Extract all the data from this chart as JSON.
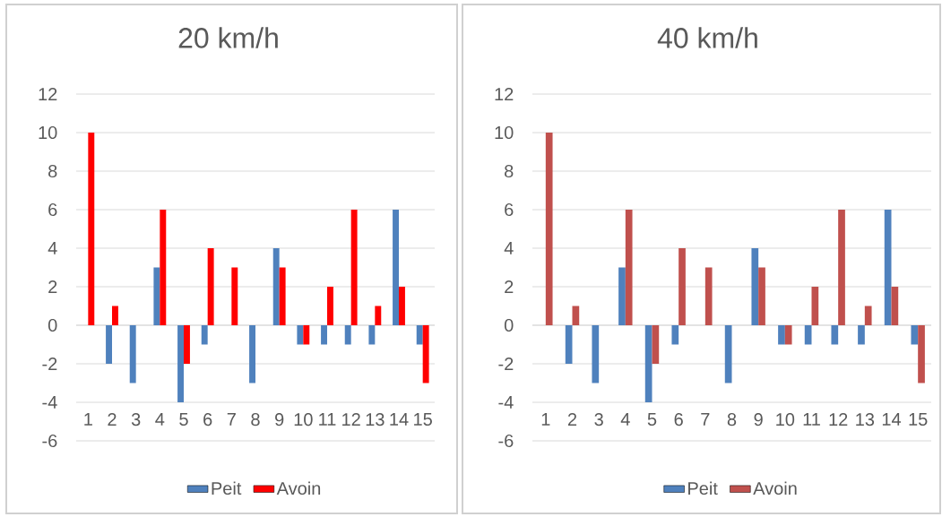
{
  "chart_data": [
    {
      "type": "bar",
      "title": "20 km/h",
      "categories": [
        "1",
        "2",
        "3",
        "4",
        "5",
        "6",
        "7",
        "8",
        "9",
        "10",
        "11",
        "12",
        "13",
        "14",
        "15"
      ],
      "series": [
        {
          "name": "Peit",
          "color": "#4f81bd",
          "values": [
            0,
            -2,
            -3,
            3,
            -4,
            -1,
            0,
            -3,
            4,
            -1,
            -1,
            -1,
            -1,
            6,
            -1
          ]
        },
        {
          "name": "Avoin",
          "color": "#ff0000",
          "values": [
            10,
            1,
            0,
            6,
            -2,
            4,
            3,
            0,
            3,
            -1,
            2,
            6,
            1,
            2,
            -3
          ]
        }
      ],
      "ylim": [
        -6,
        12
      ],
      "yticks": [
        -6,
        -4,
        -2,
        0,
        2,
        4,
        6,
        8,
        10,
        12
      ],
      "grid": "y",
      "legend": "bottom"
    },
    {
      "type": "bar",
      "title": "40 km/h",
      "categories": [
        "1",
        "2",
        "3",
        "4",
        "5",
        "6",
        "7",
        "8",
        "9",
        "10",
        "11",
        "12",
        "13",
        "14",
        "15"
      ],
      "series": [
        {
          "name": "Peit",
          "color": "#4f81bd",
          "values": [
            0,
            -2,
            -3,
            3,
            -4,
            -1,
            0,
            -3,
            4,
            -1,
            -1,
            -1,
            -1,
            6,
            -1
          ]
        },
        {
          "name": "Avoin",
          "color": "#c0504d",
          "values": [
            10,
            1,
            0,
            6,
            -2,
            4,
            3,
            0,
            3,
            -1,
            2,
            6,
            1,
            2,
            -3
          ]
        }
      ],
      "ylim": [
        -6,
        12
      ],
      "yticks": [
        -6,
        -4,
        -2,
        0,
        2,
        4,
        6,
        8,
        10,
        12
      ],
      "grid": "y",
      "legend": "bottom"
    }
  ]
}
